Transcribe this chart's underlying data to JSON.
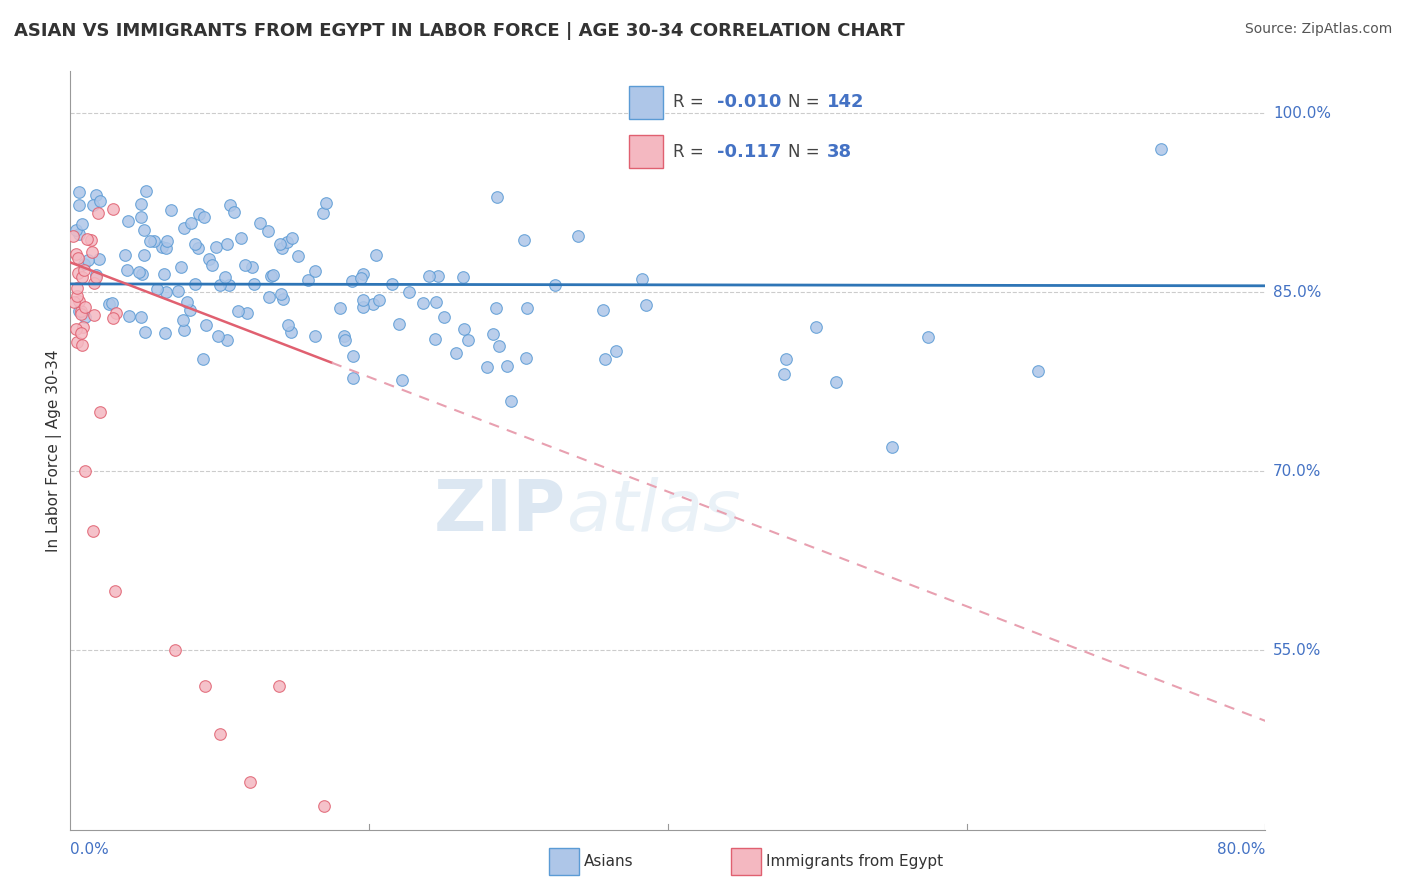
{
  "title": "ASIAN VS IMMIGRANTS FROM EGYPT IN LABOR FORCE | AGE 30-34 CORRELATION CHART",
  "source": "Source: ZipAtlas.com",
  "ylabel": "In Labor Force | Age 30-34",
  "xmin": 0.0,
  "xmax": 0.8,
  "ymin": 0.4,
  "ymax": 1.035,
  "asian_R": -0.01,
  "asian_N": 142,
  "egypt_R": -0.117,
  "egypt_N": 38,
  "asian_color": "#aec6e8",
  "asian_edge": "#5b9bd5",
  "egypt_color": "#f4b8c1",
  "egypt_edge": "#e06070",
  "asian_line_color": "#2e75b6",
  "egypt_line_solid_color": "#e06070",
  "egypt_line_dash_color": "#e8a0b0",
  "ytick_vals": [
    0.55,
    0.7,
    0.85,
    1.0
  ],
  "ytick_labels": [
    "55.0%",
    "70.0%",
    "85.0%",
    "100.0%"
  ],
  "watermark_zip_color": "#b0c8e0",
  "watermark_atlas_color": "#c8d8e8"
}
